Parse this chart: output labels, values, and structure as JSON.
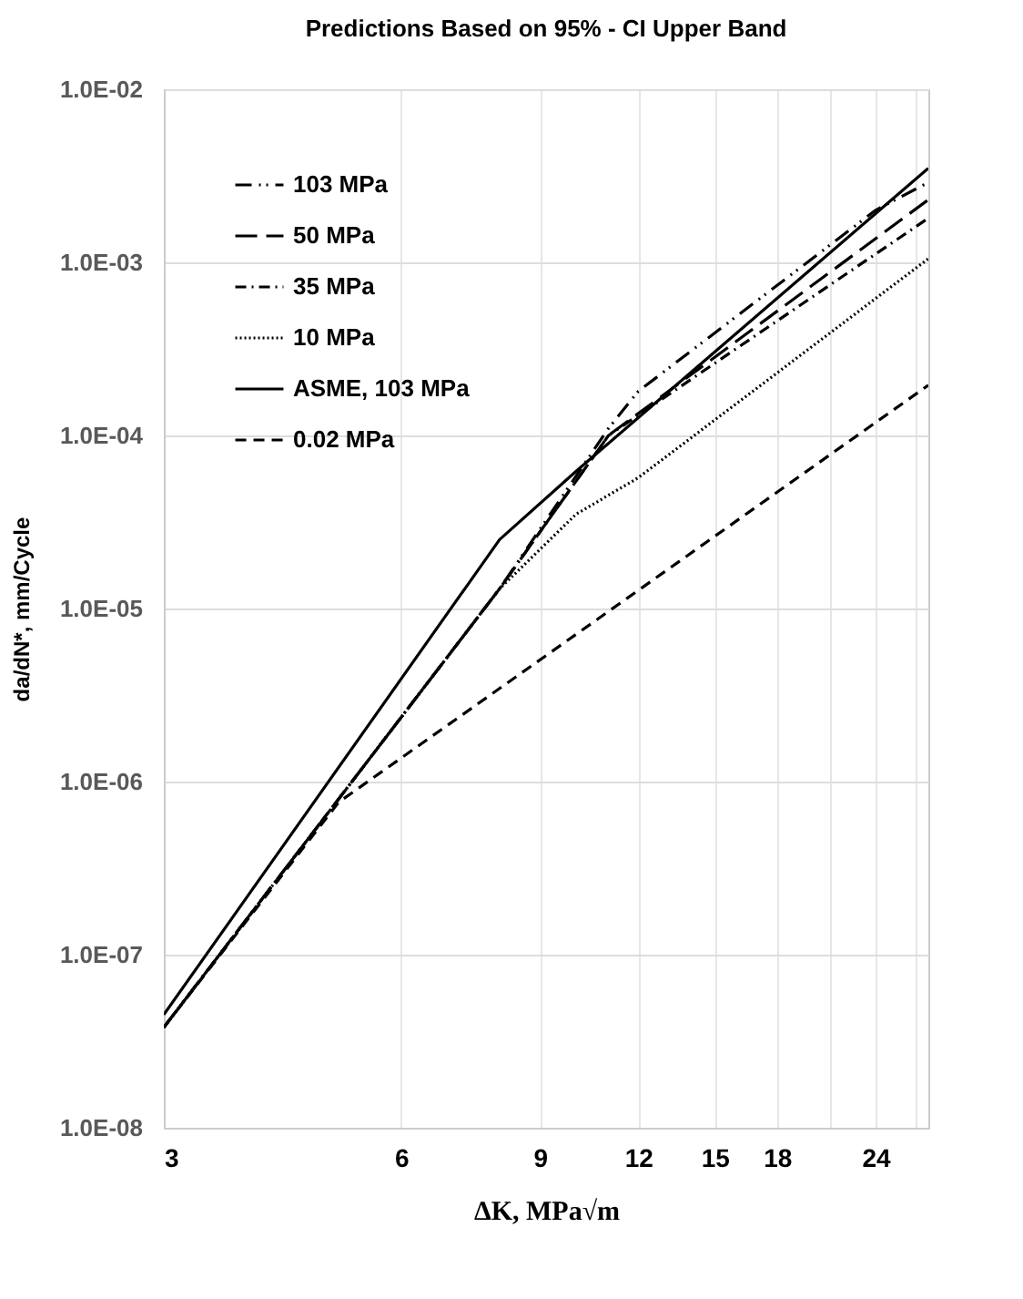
{
  "chart_data": {
    "type": "line",
    "title": "Predictions Based on 95% - CI Upper Band",
    "xlabel": "ΔK, MPa√m",
    "ylabel": "da/dN*, mm/Cycle",
    "log": "xy",
    "grid": true,
    "legend": "top left",
    "marker": "none",
    "xlim": [
      3,
      28
    ],
    "ylim": [
      1e-08,
      0.01
    ],
    "xticks": [
      3,
      6,
      9,
      12,
      15,
      18,
      {
        "value": 21,
        "label": null
      },
      24,
      {
        "value": 27,
        "label": null
      }
    ],
    "yticks": [
      {
        "value": 1e-08,
        "label": "1.0E-08"
      },
      {
        "value": 1e-07,
        "label": "1.0E-07"
      },
      {
        "value": 1e-06,
        "label": "1.0E-06"
      },
      {
        "value": 1e-05,
        "label": "1.0E-05"
      },
      {
        "value": 0.0001,
        "label": "1.0E-04"
      },
      {
        "value": 0.001,
        "label": "1.0E-03"
      },
      {
        "value": 0.01,
        "label": "1.0E-02"
      }
    ],
    "series": [
      {
        "name": "103 MPa",
        "color": "#000000",
        "line_style": "dashdotdot",
        "x": [
          3,
          8,
          11,
          12,
          24,
          28
        ],
        "values": [
          3.8e-08,
          1.3e-05,
          0.00011,
          0.00018,
          0.002,
          0.0029
        ]
      },
      {
        "name": "50 MPa",
        "color": "#000000",
        "line_style": "longdash",
        "x": [
          3,
          8,
          11,
          28
        ],
        "values": [
          3.8e-08,
          1.3e-05,
          0.0001,
          0.0023
        ]
      },
      {
        "name": "35 MPa",
        "color": "#000000",
        "line_style": "dashdot",
        "x": [
          3,
          8,
          11,
          28
        ],
        "values": [
          3.8e-08,
          1.3e-05,
          0.0001,
          0.0018
        ]
      },
      {
        "name": "10 MPa",
        "color": "#000000",
        "line_style": "dotted",
        "x": [
          3,
          8,
          10,
          12,
          28
        ],
        "values": [
          3.8e-08,
          1.3e-05,
          3.5e-05,
          5.7e-05,
          0.00105
        ]
      },
      {
        "name": "ASME, 103 MPa",
        "color": "#000000",
        "line_style": "solid",
        "x": [
          3,
          8,
          10,
          28
        ],
        "values": [
          4.5e-08,
          2.5e-05,
          6.2e-05,
          0.0035
        ]
      },
      {
        "name": "0.02 MPa",
        "color": "#000000",
        "line_style": "dashed",
        "x": [
          3,
          5,
          28
        ],
        "values": [
          3.8e-08,
          7.6e-07,
          0.000195
        ]
      }
    ]
  }
}
